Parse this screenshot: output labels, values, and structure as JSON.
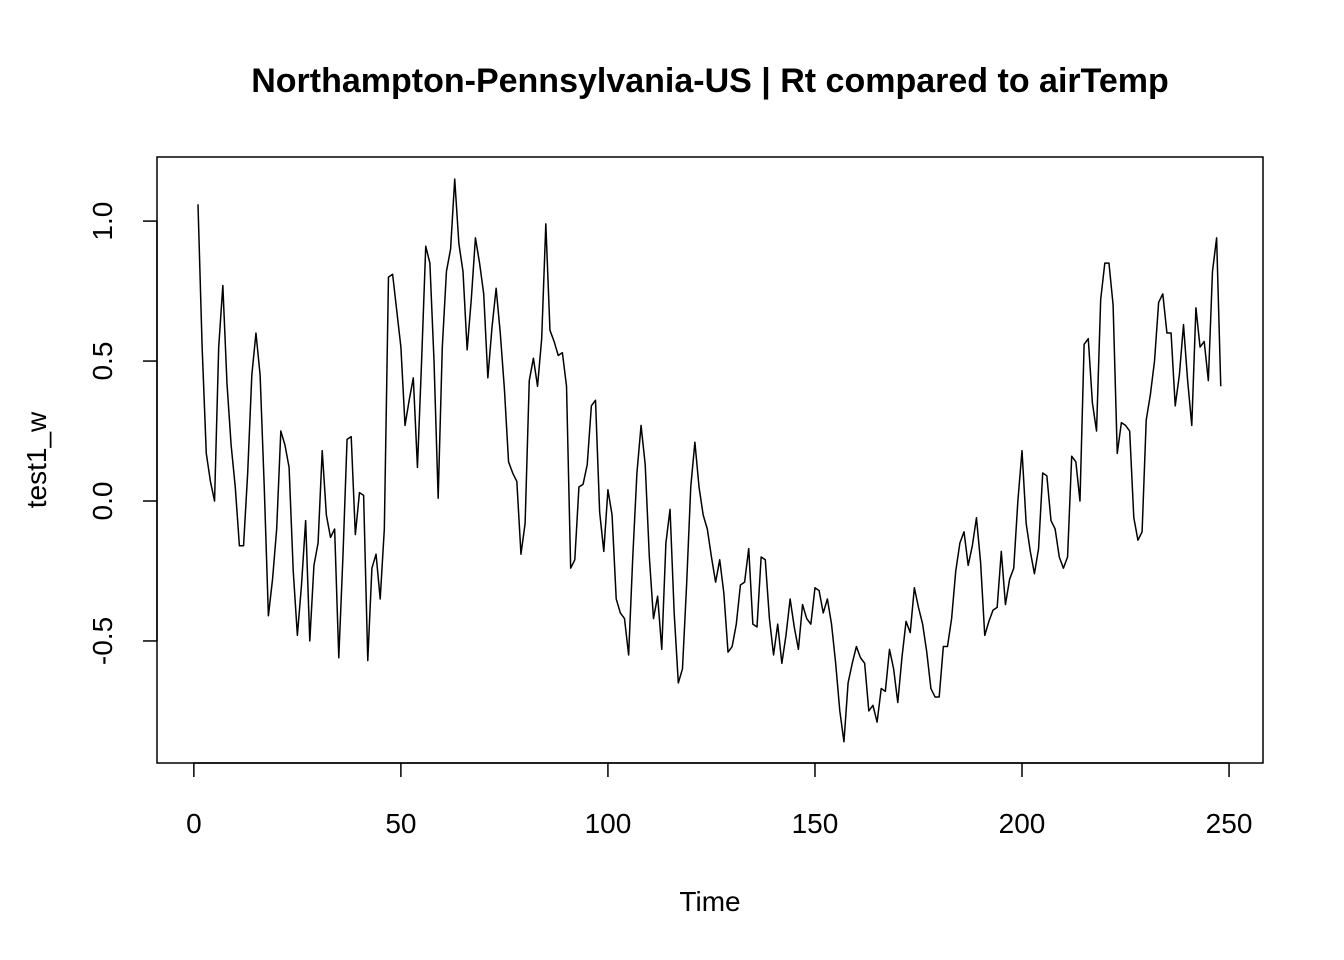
{
  "chart_data": {
    "type": "line",
    "title": "Northampton-Pennsylvania-US | Rt compared to airTemp",
    "xlabel": "Time",
    "ylabel": "test1_w",
    "color": "#000000",
    "xlim": [
      -8.9,
      258.2
    ],
    "ylim": [
      -0.936,
      1.229
    ],
    "xticks": [
      0,
      50,
      100,
      150,
      200,
      250
    ],
    "yticks": [
      -0.5,
      {
        "value": 0,
        "label": "0.0"
      },
      0.5,
      {
        "value": 1,
        "label": "1.0"
      }
    ],
    "x": [
      1,
      2,
      3,
      4,
      5,
      6,
      7,
      8,
      9,
      10,
      11,
      12,
      13,
      14,
      15,
      16,
      17,
      18,
      19,
      20,
      21,
      22,
      23,
      24,
      25,
      26,
      27,
      28,
      29,
      30,
      31,
      32,
      33,
      34,
      35,
      36,
      37,
      38,
      39,
      40,
      41,
      42,
      43,
      44,
      45,
      46,
      47,
      48,
      49,
      50,
      51,
      52,
      53,
      54,
      55,
      56,
      57,
      58,
      59,
      60,
      61,
      62,
      63,
      64,
      65,
      66,
      67,
      68,
      69,
      70,
      71,
      72,
      73,
      74,
      75,
      76,
      77,
      78,
      79,
      80,
      81,
      82,
      83,
      84,
      85,
      86,
      87,
      88,
      89,
      90,
      91,
      92,
      93,
      94,
      95,
      96,
      97,
      98,
      99,
      100,
      101,
      102,
      103,
      104,
      105,
      106,
      107,
      108,
      109,
      110,
      111,
      112,
      113,
      114,
      115,
      116,
      117,
      118,
      119,
      120,
      121,
      122,
      123,
      124,
      125,
      126,
      127,
      128,
      129,
      130,
      131,
      132,
      133,
      134,
      135,
      136,
      137,
      138,
      139,
      140,
      141,
      142,
      143,
      144,
      145,
      146,
      147,
      148,
      149,
      150,
      151,
      152,
      153,
      154,
      155,
      156,
      157,
      158,
      159,
      160,
      161,
      162,
      163,
      164,
      165,
      166,
      167,
      168,
      169,
      170,
      171,
      172,
      173,
      174,
      175,
      176,
      177,
      178,
      179,
      180,
      181,
      182,
      183,
      184,
      185,
      186,
      187,
      188,
      189,
      190,
      191,
      192,
      193,
      194,
      195,
      196,
      197,
      198,
      199,
      200,
      201,
      202,
      203,
      204,
      205,
      206,
      207,
      208,
      209,
      210,
      211,
      212,
      213,
      214,
      215,
      216,
      217,
      218,
      219,
      220,
      221,
      222,
      223,
      224,
      225,
      226,
      227,
      228,
      229,
      230,
      231,
      232,
      233,
      234,
      235,
      236,
      237,
      238,
      239,
      240,
      241,
      242,
      243,
      244,
      245,
      246,
      247,
      248
    ],
    "values": [
      1.06,
      0.55,
      0.17,
      0.07,
      0.0,
      0.55,
      0.77,
      0.42,
      0.2,
      0.05,
      -0.16,
      -0.16,
      0.1,
      0.45,
      0.6,
      0.45,
      0.05,
      -0.41,
      -0.28,
      -0.1,
      0.25,
      0.2,
      0.12,
      -0.25,
      -0.48,
      -0.3,
      -0.07,
      -0.5,
      -0.23,
      -0.15,
      0.18,
      -0.05,
      -0.13,
      -0.1,
      -0.56,
      -0.2,
      0.22,
      0.23,
      -0.12,
      0.03,
      0.02,
      -0.57,
      -0.24,
      -0.19,
      -0.35,
      -0.1,
      0.8,
      0.81,
      0.68,
      0.55,
      0.27,
      0.36,
      0.44,
      0.12,
      0.5,
      0.91,
      0.85,
      0.5,
      0.01,
      0.55,
      0.82,
      0.9,
      1.15,
      0.92,
      0.82,
      0.54,
      0.72,
      0.94,
      0.85,
      0.74,
      0.44,
      0.62,
      0.76,
      0.6,
      0.4,
      0.14,
      0.1,
      0.07,
      -0.19,
      -0.08,
      0.43,
      0.51,
      0.41,
      0.58,
      0.99,
      0.61,
      0.57,
      0.52,
      0.53,
      0.41,
      -0.24,
      -0.21,
      0.05,
      0.06,
      0.13,
      0.34,
      0.36,
      -0.04,
      -0.18,
      0.04,
      -0.05,
      -0.35,
      -0.4,
      -0.42,
      -0.55,
      -0.2,
      0.1,
      0.27,
      0.13,
      -0.2,
      -0.42,
      -0.34,
      -0.53,
      -0.15,
      -0.03,
      -0.4,
      -0.65,
      -0.6,
      -0.3,
      0.05,
      0.21,
      0.05,
      -0.05,
      -0.1,
      -0.2,
      -0.29,
      -0.21,
      -0.33,
      -0.54,
      -0.52,
      -0.44,
      -0.3,
      -0.29,
      -0.17,
      -0.44,
      -0.45,
      -0.2,
      -0.21,
      -0.42,
      -0.55,
      -0.44,
      -0.58,
      -0.48,
      -0.35,
      -0.45,
      -0.53,
      -0.37,
      -0.42,
      -0.44,
      -0.31,
      -0.32,
      -0.4,
      -0.35,
      -0.44,
      -0.58,
      -0.75,
      -0.86,
      -0.65,
      -0.58,
      -0.52,
      -0.56,
      -0.58,
      -0.75,
      -0.73,
      -0.79,
      -0.67,
      -0.68,
      -0.53,
      -0.6,
      -0.72,
      -0.56,
      -0.43,
      -0.47,
      -0.31,
      -0.38,
      -0.44,
      -0.54,
      -0.67,
      -0.7,
      -0.7,
      -0.52,
      -0.52,
      -0.42,
      -0.25,
      -0.15,
      -0.11,
      -0.23,
      -0.16,
      -0.06,
      -0.22,
      -0.48,
      -0.43,
      -0.39,
      -0.38,
      -0.18,
      -0.37,
      -0.28,
      -0.24,
      0.0,
      0.18,
      -0.08,
      -0.18,
      -0.26,
      -0.17,
      0.1,
      0.09,
      -0.07,
      -0.1,
      -0.2,
      -0.24,
      -0.2,
      0.16,
      0.14,
      0.0,
      0.56,
      0.58,
      0.35,
      0.25,
      0.72,
      0.85,
      0.85,
      0.7,
      0.17,
      0.28,
      0.27,
      0.25,
      -0.06,
      -0.14,
      -0.11,
      0.29,
      0.38,
      0.5,
      0.71,
      0.74,
      0.6,
      0.6,
      0.34,
      0.45,
      0.63,
      0.43,
      0.27,
      0.69,
      0.55,
      0.57,
      0.43,
      0.82,
      0.94,
      0.41
    ]
  }
}
